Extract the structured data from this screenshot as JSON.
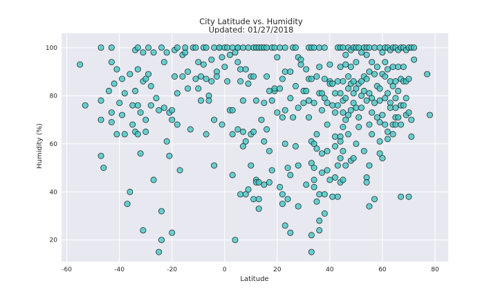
{
  "chart_data": {
    "type": "scatter",
    "title": "City Latitude vs. Humidity",
    "subtitle": "Updated: 01/27/2018",
    "xlabel": "Latitude",
    "ylabel": "Humidity (%)",
    "xlim": [
      -62,
      85
    ],
    "ylim": [
      11,
      106
    ],
    "xticks": [
      -60,
      -40,
      -20,
      0,
      20,
      40,
      60,
      80
    ],
    "yticks": [
      20,
      40,
      60,
      80,
      100
    ],
    "grid": true,
    "colors": {
      "plot_background": "#e8e8f0",
      "marker_fill": "#3cc6c4",
      "marker_edge": "#1f2a2a"
    },
    "points": [
      [
        -55,
        93
      ],
      [
        -53,
        76
      ],
      [
        -47,
        100
      ],
      [
        -47,
        78
      ],
      [
        -47,
        70
      ],
      [
        -47,
        55
      ],
      [
        -46,
        50
      ],
      [
        -44,
        82
      ],
      [
        -43,
        100
      ],
      [
        -43,
        94
      ],
      [
        -43,
        73
      ],
      [
        -43,
        69
      ],
      [
        -42,
        85
      ],
      [
        -41,
        64
      ],
      [
        -41,
        91
      ],
      [
        -40,
        77
      ],
      [
        -39,
        87
      ],
      [
        -39,
        72
      ],
      [
        -38,
        64
      ],
      [
        -38,
        81
      ],
      [
        -37,
        35
      ],
      [
        -36,
        89
      ],
      [
        -36,
        40
      ],
      [
        -35,
        76
      ],
      [
        -35,
        68
      ],
      [
        -34,
        82
      ],
      [
        -34,
        65
      ],
      [
        -34,
        99
      ],
      [
        -33,
        100
      ],
      [
        -33,
        91
      ],
      [
        -33,
        76
      ],
      [
        -33,
        64
      ],
      [
        -32,
        56
      ],
      [
        -32,
        73
      ],
      [
        -31,
        86
      ],
      [
        -31,
        24
      ],
      [
        -31,
        98
      ],
      [
        -30,
        87
      ],
      [
        -30,
        70
      ],
      [
        -30,
        65
      ],
      [
        -29,
        100
      ],
      [
        -29,
        89
      ],
      [
        -28,
        76
      ],
      [
        -28,
        84
      ],
      [
        -27,
        45
      ],
      [
        -27,
        98
      ],
      [
        -26,
        79
      ],
      [
        -25,
        74
      ],
      [
        -25,
        15
      ],
      [
        -24,
        100
      ],
      [
        -24,
        32
      ],
      [
        -24,
        20
      ],
      [
        -23,
        94
      ],
      [
        -23,
        75
      ],
      [
        -22,
        98
      ],
      [
        -22,
        61
      ],
      [
        -21,
        55
      ],
      [
        -21,
        73
      ],
      [
        -20,
        74
      ],
      [
        -20,
        70
      ],
      [
        -20,
        23
      ],
      [
        -19,
        99
      ],
      [
        -19,
        88
      ],
      [
        -18,
        100
      ],
      [
        -18,
        81
      ],
      [
        -18,
        68
      ],
      [
        -17,
        49
      ],
      [
        -16,
        97
      ],
      [
        -16,
        88
      ],
      [
        -15,
        98
      ],
      [
        -15,
        100
      ],
      [
        -14,
        90
      ],
      [
        -14,
        83
      ],
      [
        -13,
        66
      ],
      [
        -12,
        100
      ],
      [
        -11,
        87
      ],
      [
        -11,
        100
      ],
      [
        -10,
        94
      ],
      [
        -10,
        83
      ],
      [
        -9,
        78
      ],
      [
        -9,
        88
      ],
      [
        -8,
        93
      ],
      [
        -8,
        100
      ],
      [
        -7,
        100
      ],
      [
        -7,
        64
      ],
      [
        -7,
        87
      ],
      [
        -6,
        80
      ],
      [
        -6,
        78
      ],
      [
        -5,
        95
      ],
      [
        -5,
        86
      ],
      [
        -4,
        100
      ],
      [
        -4,
        70
      ],
      [
        -4,
        51
      ],
      [
        -3,
        90
      ],
      [
        -3,
        88
      ],
      [
        -2,
        100
      ],
      [
        -2,
        100
      ],
      [
        -1,
        96
      ],
      [
        -1,
        68
      ],
      [
        0,
        92
      ],
      [
        0,
        100
      ],
      [
        1,
        100
      ],
      [
        1,
        86
      ],
      [
        2,
        97
      ],
      [
        2,
        74
      ],
      [
        3,
        100
      ],
      [
        3,
        74
      ],
      [
        3,
        64
      ],
      [
        3,
        47
      ],
      [
        4,
        20
      ],
      [
        4,
        98
      ],
      [
        5,
        100
      ],
      [
        5,
        100
      ],
      [
        5,
        94
      ],
      [
        5,
        66
      ],
      [
        6,
        91
      ],
      [
        6,
        86
      ],
      [
        6,
        39
      ],
      [
        7,
        100
      ],
      [
        7,
        78
      ],
      [
        7,
        59
      ],
      [
        7,
        65
      ],
      [
        8,
        91
      ],
      [
        8,
        61
      ],
      [
        8,
        39
      ],
      [
        9,
        100
      ],
      [
        9,
        85
      ],
      [
        9,
        41
      ],
      [
        10,
        88
      ],
      [
        10,
        64
      ],
      [
        10,
        51
      ],
      [
        11,
        100
      ],
      [
        11,
        88
      ],
      [
        11,
        37
      ],
      [
        11,
        65
      ],
      [
        12,
        100
      ],
      [
        12,
        78
      ],
      [
        12,
        45
      ],
      [
        12,
        44
      ],
      [
        13,
        100
      ],
      [
        13,
        44
      ],
      [
        13,
        37
      ],
      [
        13,
        33
      ],
      [
        14,
        100
      ],
      [
        14,
        70
      ],
      [
        15,
        100
      ],
      [
        15,
        77
      ],
      [
        15,
        43
      ],
      [
        15,
        61
      ],
      [
        16,
        100
      ],
      [
        16,
        88
      ],
      [
        16,
        66
      ],
      [
        17,
        82
      ],
      [
        17,
        44
      ],
      [
        17,
        57
      ],
      [
        18,
        100
      ],
      [
        18,
        49
      ],
      [
        18,
        78
      ],
      [
        19,
        100
      ],
      [
        19,
        82
      ],
      [
        19,
        83
      ],
      [
        20,
        73
      ],
      [
        20,
        96
      ],
      [
        21,
        100
      ],
      [
        21,
        83
      ],
      [
        21,
        42
      ],
      [
        22,
        71
      ],
      [
        22,
        87
      ],
      [
        22,
        35
      ],
      [
        22,
        39
      ],
      [
        23,
        100
      ],
      [
        23,
        90
      ],
      [
        23,
        74
      ],
      [
        23,
        60
      ],
      [
        23,
        26
      ],
      [
        24,
        50
      ],
      [
        24,
        37
      ],
      [
        25,
        90
      ],
      [
        25,
        79
      ],
      [
        25,
        47
      ],
      [
        25,
        23
      ],
      [
        26,
        100
      ],
      [
        26,
        71
      ],
      [
        27,
        100
      ],
      [
        27,
        84
      ],
      [
        27,
        59
      ],
      [
        28,
        96
      ],
      [
        28,
        75
      ],
      [
        28,
        51
      ],
      [
        28,
        34
      ],
      [
        29,
        95
      ],
      [
        29,
        93
      ],
      [
        30,
        82
      ],
      [
        30,
        77
      ],
      [
        31,
        91
      ],
      [
        31,
        82
      ],
      [
        31,
        43
      ],
      [
        32,
        100
      ],
      [
        32,
        87
      ],
      [
        32,
        78
      ],
      [
        32,
        71
      ],
      [
        33,
        100
      ],
      [
        33,
        87
      ],
      [
        33,
        61
      ],
      [
        33,
        52
      ],
      [
        33,
        22
      ],
      [
        33,
        15
      ],
      [
        34,
        100
      ],
      [
        34,
        77
      ],
      [
        34,
        60
      ],
      [
        34,
        50
      ],
      [
        34,
        45
      ],
      [
        34,
        42
      ],
      [
        35,
        58
      ],
      [
        35,
        64
      ],
      [
        35,
        36
      ],
      [
        35,
        88
      ],
      [
        36,
        100
      ],
      [
        36,
        81
      ],
      [
        36,
        92
      ],
      [
        36,
        39
      ],
      [
        36,
        28
      ],
      [
        36,
        24
      ],
      [
        37,
        81
      ],
      [
        37,
        74
      ],
      [
        37,
        56
      ],
      [
        37,
        48
      ],
      [
        38,
        100
      ],
      [
        38,
        87
      ],
      [
        38,
        79
      ],
      [
        38,
        39
      ],
      [
        38,
        31
      ],
      [
        39,
        77
      ],
      [
        39,
        57
      ],
      [
        39,
        49
      ],
      [
        39,
        68
      ],
      [
        40,
        93
      ],
      [
        40,
        86
      ],
      [
        40,
        85
      ],
      [
        40,
        45
      ],
      [
        41,
        85
      ],
      [
        41,
        76
      ],
      [
        41,
        38
      ],
      [
        42,
        81
      ],
      [
        42,
        73
      ],
      [
        42,
        63
      ],
      [
        42,
        59
      ],
      [
        42,
        46
      ],
      [
        43,
        100
      ],
      [
        43,
        86
      ],
      [
        43,
        76
      ],
      [
        43,
        51
      ],
      [
        43,
        38
      ],
      [
        44,
        100
      ],
      [
        44,
        92
      ],
      [
        44,
        81
      ],
      [
        44,
        63
      ],
      [
        44,
        61
      ],
      [
        44,
        54
      ],
      [
        44,
        44
      ],
      [
        45,
        100
      ],
      [
        45,
        86
      ],
      [
        45,
        78
      ],
      [
        45,
        73
      ],
      [
        45,
        67
      ],
      [
        45,
        57
      ],
      [
        45,
        45
      ],
      [
        46,
        97
      ],
      [
        46,
        93
      ],
      [
        46,
        79
      ],
      [
        46,
        70
      ],
      [
        46,
        51
      ],
      [
        47,
        100
      ],
      [
        47,
        88
      ],
      [
        47,
        83
      ],
      [
        47,
        72
      ],
      [
        47,
        64
      ],
      [
        48,
        99
      ],
      [
        48,
        92
      ],
      [
        48,
        85
      ],
      [
        48,
        74
      ],
      [
        48,
        53
      ],
      [
        49,
        100
      ],
      [
        49,
        86
      ],
      [
        49,
        81
      ],
      [
        49,
        77
      ],
      [
        49,
        54
      ],
      [
        50,
        100
      ],
      [
        50,
        94
      ],
      [
        50,
        83
      ],
      [
        50,
        75
      ],
      [
        50,
        60
      ],
      [
        51,
        100
      ],
      [
        51,
        85
      ],
      [
        51,
        71
      ],
      [
        51,
        67
      ],
      [
        52,
        98
      ],
      [
        52,
        86
      ],
      [
        52,
        80
      ],
      [
        52,
        75
      ],
      [
        53,
        100
      ],
      [
        53,
        88
      ],
      [
        53,
        82
      ],
      [
        53,
        57
      ],
      [
        54,
        100
      ],
      [
        54,
        97
      ],
      [
        54,
        87
      ],
      [
        54,
        78
      ],
      [
        54,
        46
      ],
      [
        54,
        44
      ],
      [
        55,
        100
      ],
      [
        55,
        90
      ],
      [
        55,
        81
      ],
      [
        55,
        68
      ],
      [
        55,
        51
      ],
      [
        55,
        34
      ],
      [
        56,
        94
      ],
      [
        56,
        79
      ],
      [
        56,
        73
      ],
      [
        56,
        64
      ],
      [
        57,
        100
      ],
      [
        57,
        89
      ],
      [
        57,
        77
      ],
      [
        57,
        37
      ],
      [
        58,
        92
      ],
      [
        58,
        84
      ],
      [
        58,
        71
      ],
      [
        59,
        100
      ],
      [
        59,
        83
      ],
      [
        59,
        78
      ],
      [
        59,
        69
      ],
      [
        59,
        61
      ],
      [
        59,
        56
      ],
      [
        60,
        98
      ],
      [
        60,
        89
      ],
      [
        60,
        72
      ],
      [
        60,
        54
      ],
      [
        61,
        100
      ],
      [
        61,
        94
      ],
      [
        61,
        88
      ],
      [
        61,
        79
      ],
      [
        61,
        68
      ],
      [
        62,
        100
      ],
      [
        62,
        91
      ],
      [
        62,
        81
      ],
      [
        62,
        65
      ],
      [
        62,
        62
      ],
      [
        63,
        99
      ],
      [
        63,
        86
      ],
      [
        63,
        77
      ],
      [
        63,
        75
      ],
      [
        64,
        100
      ],
      [
        64,
        92
      ],
      [
        64,
        84
      ],
      [
        64,
        68
      ],
      [
        64,
        64
      ],
      [
        65,
        100
      ],
      [
        65,
        86
      ],
      [
        65,
        79
      ],
      [
        65,
        75
      ],
      [
        65,
        71
      ],
      [
        65,
        68
      ],
      [
        66,
        99
      ],
      [
        66,
        92
      ],
      [
        66,
        82
      ],
      [
        66,
        71
      ],
      [
        67,
        100
      ],
      [
        67,
        87
      ],
      [
        67,
        76
      ],
      [
        67,
        68
      ],
      [
        67,
        38
      ],
      [
        68,
        100
      ],
      [
        68,
        92
      ],
      [
        68,
        86
      ],
      [
        68,
        76
      ],
      [
        69,
        99
      ],
      [
        69,
        86
      ],
      [
        69,
        79
      ],
      [
        69,
        72
      ],
      [
        70,
        100
      ],
      [
        70,
        87
      ],
      [
        70,
        73
      ],
      [
        70,
        38
      ],
      [
        71,
        100
      ],
      [
        71,
        70
      ],
      [
        71,
        63
      ],
      [
        72,
        100
      ],
      [
        72,
        95
      ],
      [
        77,
        89
      ],
      [
        78,
        72
      ]
    ]
  }
}
